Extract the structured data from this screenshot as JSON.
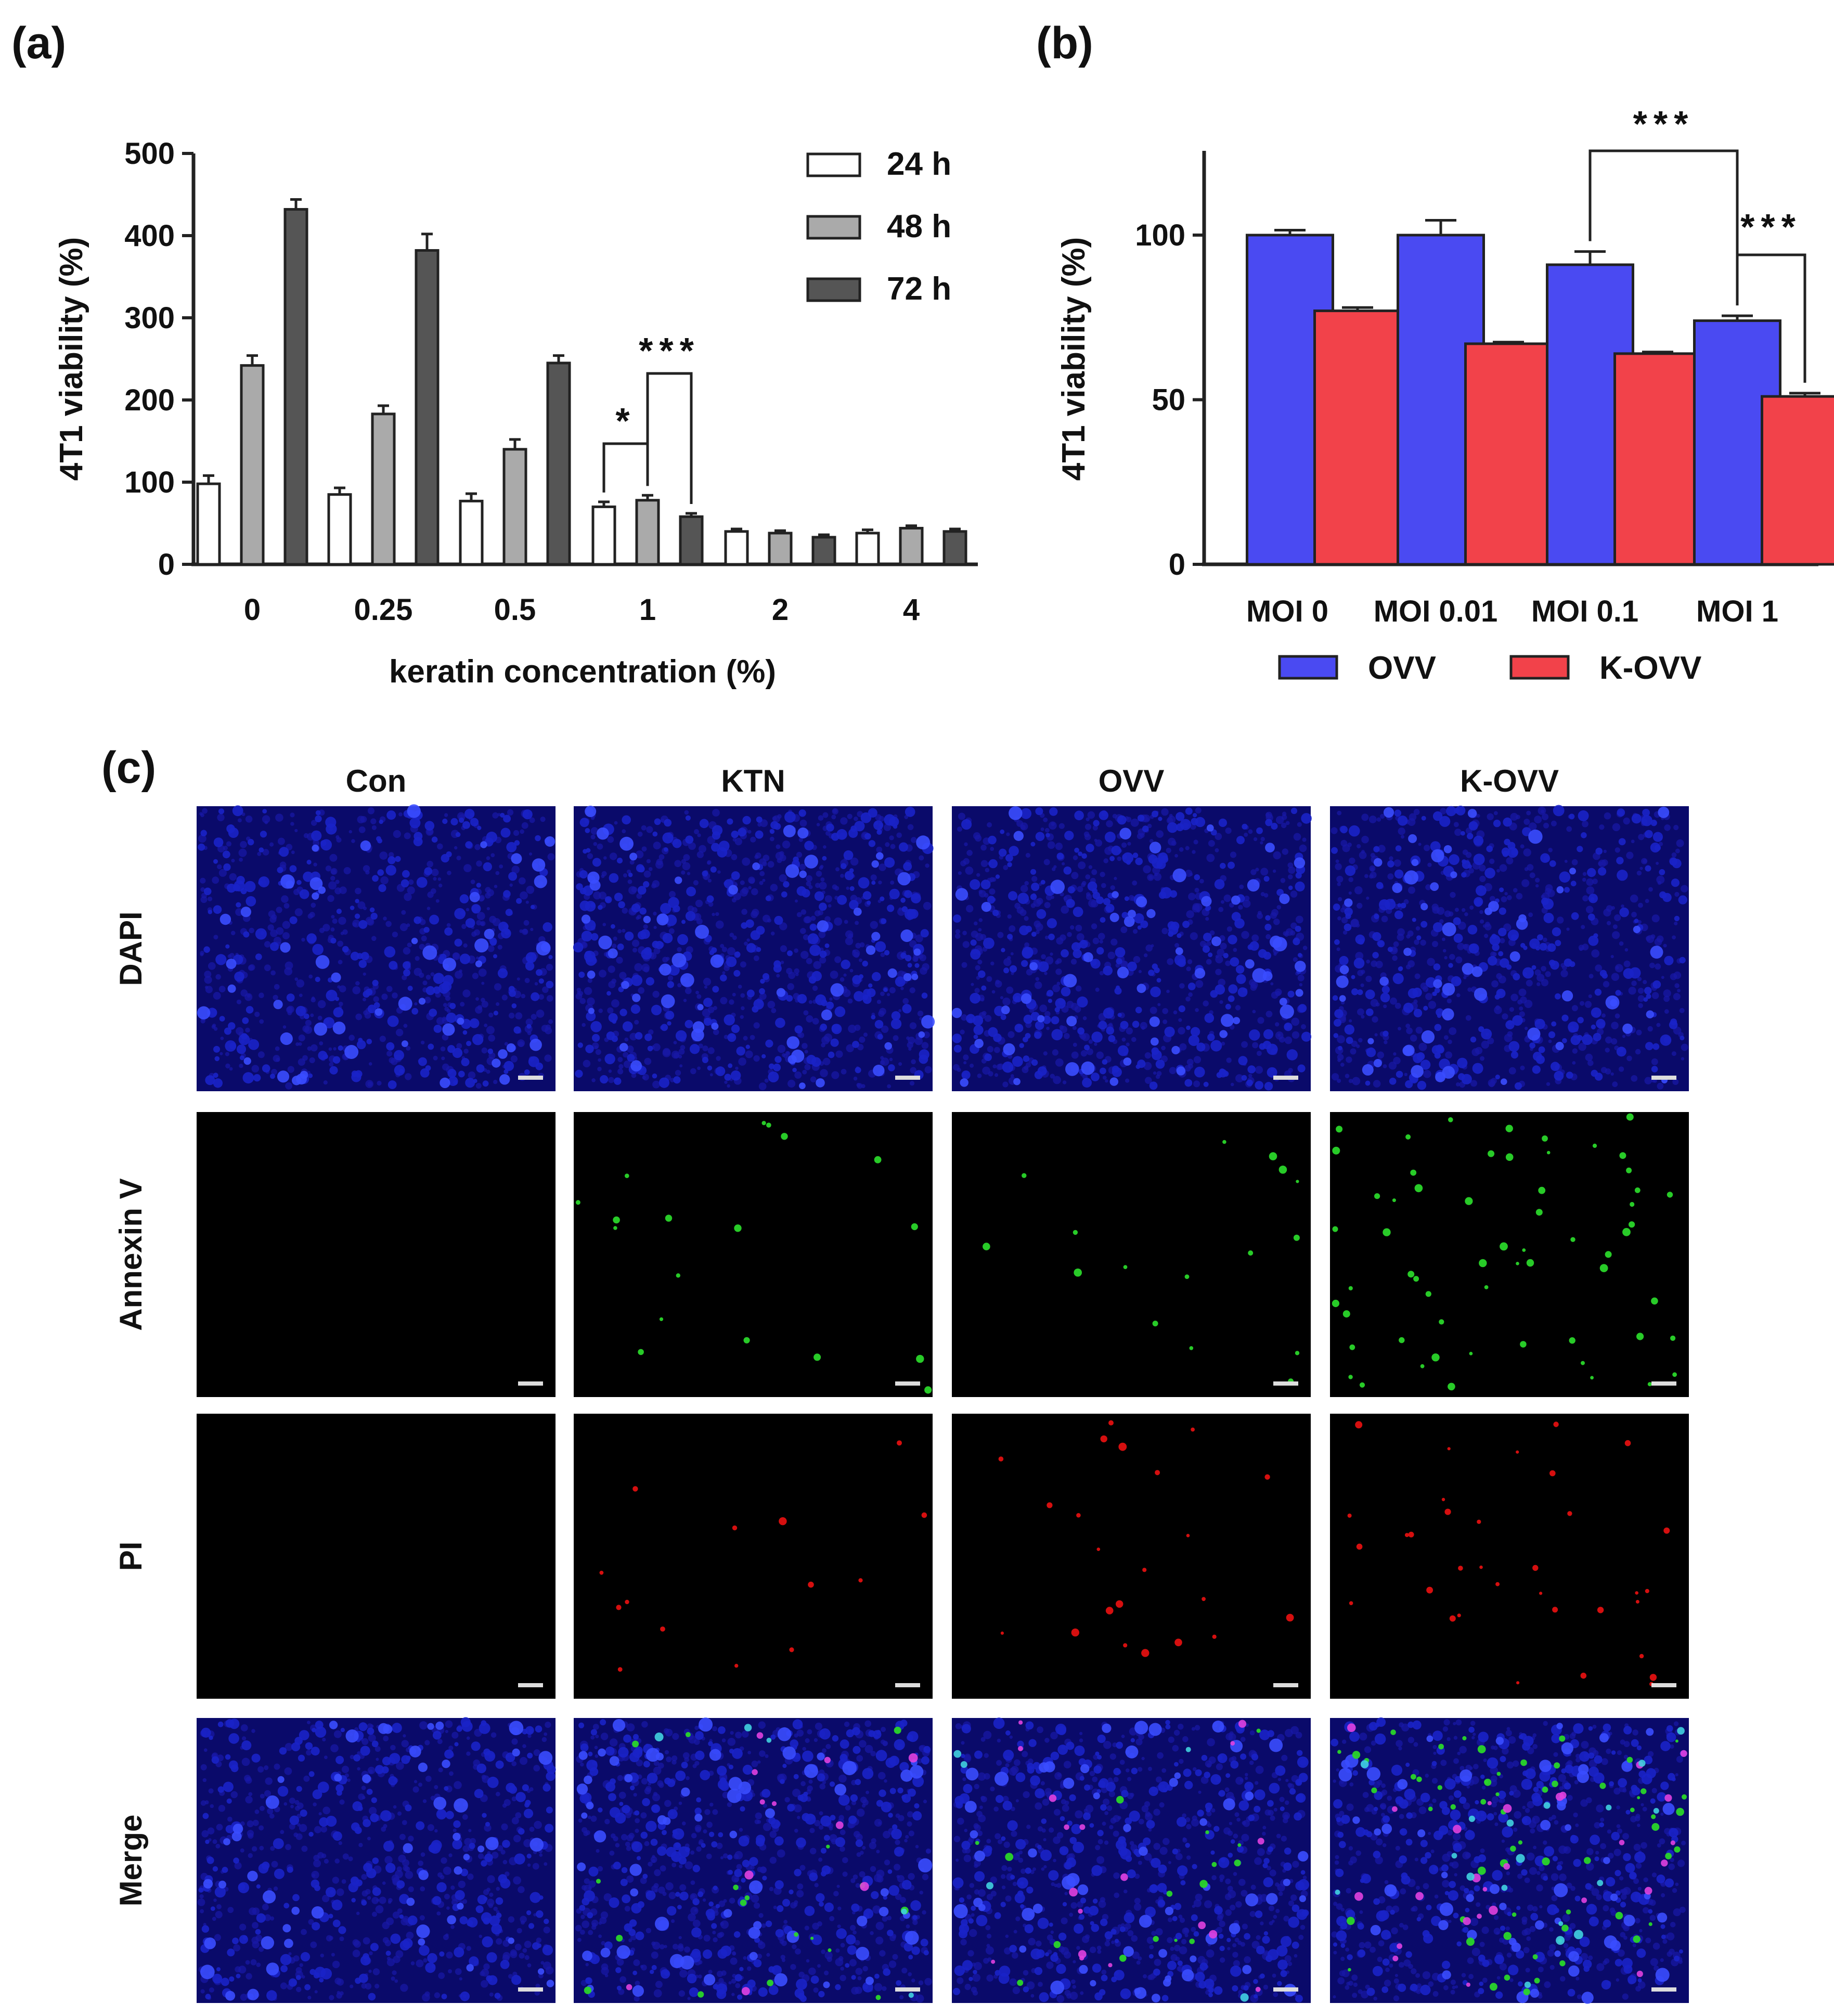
{
  "panels": {
    "a_label": "(a)",
    "b_label": "(b)",
    "c_label": "(c)"
  },
  "colors": {
    "series_24h": "#ffffff",
    "series_48h": "#aaaaaa",
    "series_72h": "#555555",
    "ovv": "#4a4af2",
    "k_ovv": "#f2424a",
    "dapi": "#1a22c8",
    "annexin": "#2ad62a",
    "pi": "#e01010"
  },
  "chart_data": [
    {
      "type": "bar",
      "title": "",
      "xlabel": "keratin concentration (%)",
      "ylabel": "4T1 viability (%)",
      "ylim": [
        0,
        500
      ],
      "yticks": [
        "0",
        "100",
        "200",
        "300",
        "400",
        "500"
      ],
      "categories": [
        "0",
        "0.25",
        "0.5",
        "1",
        "2",
        "4"
      ],
      "series": [
        {
          "name": "24 h",
          "values": [
            98,
            85,
            77,
            70,
            40,
            38
          ],
          "errors": [
            10,
            8,
            9,
            6,
            3,
            4
          ]
        },
        {
          "name": "48 h",
          "values": [
            242,
            183,
            140,
            78,
            38,
            44
          ],
          "errors": [
            12,
            10,
            12,
            6,
            3,
            3
          ]
        },
        {
          "name": "72 h",
          "values": [
            432,
            382,
            245,
            58,
            33,
            40
          ],
          "errors": [
            12,
            20,
            9,
            4,
            3,
            3
          ]
        }
      ],
      "legend": "top-right",
      "significance": [
        {
          "group": "1",
          "from": "24 h",
          "to": "48 h",
          "label": "*"
        },
        {
          "group": "1",
          "from": "48 h",
          "to": "72 h",
          "label": "***"
        }
      ]
    },
    {
      "type": "bar",
      "title": "",
      "xlabel": "",
      "ylabel": "4T1 viability (%)",
      "ylim": [
        0,
        125
      ],
      "yticks": [
        "0",
        "50",
        "100"
      ],
      "categories": [
        "MOI 0",
        "MOI 0.01",
        "MOI 0.1",
        "MOI 1"
      ],
      "series": [
        {
          "name": "OVV",
          "values": [
            100,
            100,
            91,
            74
          ],
          "errors": [
            1.5,
            4.5,
            4,
            1.5
          ]
        },
        {
          "name": "K-OVV",
          "values": [
            77,
            67,
            64,
            51
          ],
          "errors": [
            1,
            0.5,
            0.5,
            1
          ]
        }
      ],
      "legend": "bottom",
      "significance": [
        {
          "from": "MOI 0.1 OVV",
          "to": "MOI 1 OVV",
          "label": "***"
        },
        {
          "from": "MOI 1 OVV",
          "to": "MOI 1 K-OVV",
          "label": "***"
        }
      ]
    }
  ],
  "micrographs": {
    "columns": [
      "Con",
      "KTN",
      "OVV",
      "K-OVV"
    ],
    "rows": [
      "DAPI",
      "Annexin V",
      "PI",
      "Merge"
    ],
    "annexin_density": [
      0,
      18,
      16,
      60
    ],
    "pi_density": [
      0,
      14,
      22,
      34
    ],
    "dapi_density": [
      260,
      300,
      290,
      270
    ]
  }
}
